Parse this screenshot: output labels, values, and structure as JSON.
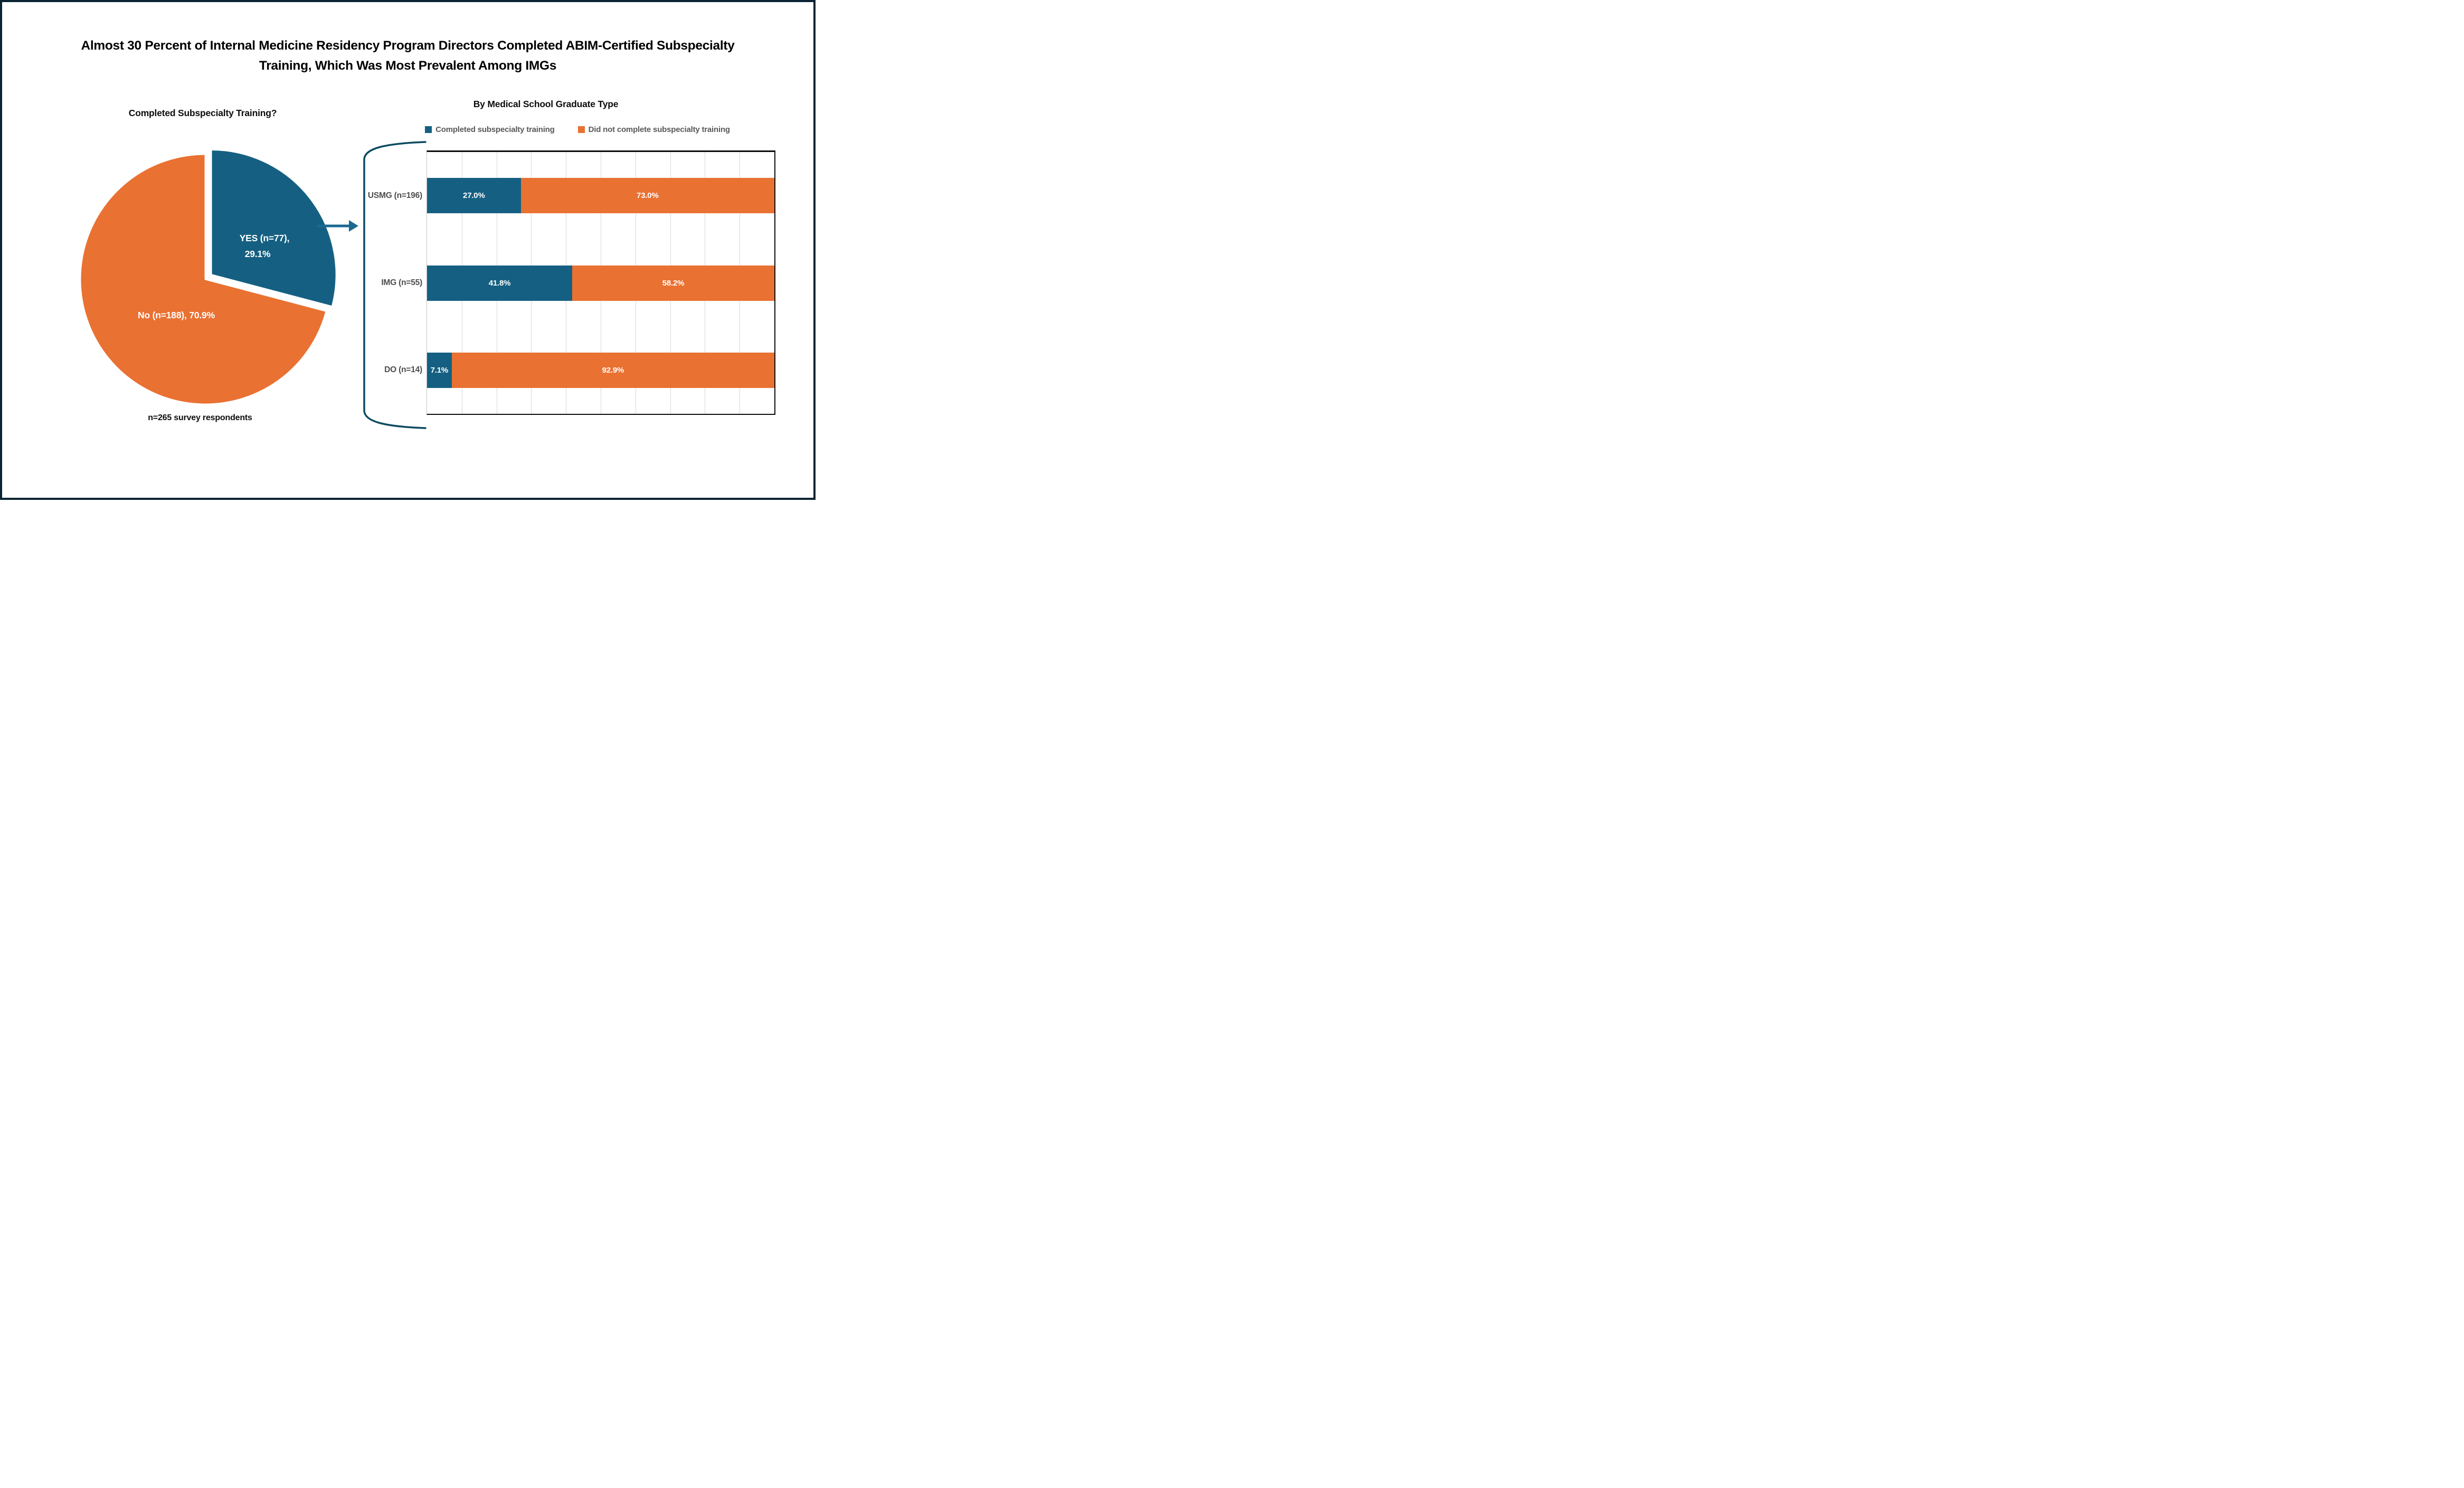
{
  "header": {
    "title_lines": [
      "Almost 30 Percent of Internal Medicine Residency Program Directors Completed ABIM-Certified Subspecialty",
      "Training, Which Was Most Prevalent Among IMGs"
    ]
  },
  "colors": {
    "accent_blue": "#156082",
    "accent_orange": "#E97132",
    "legend_text_gray": "#595959",
    "category_label_gray": "#4D4D4D",
    "gridline_gray": "#D9D9D9",
    "axis_black": "#0D0D0D",
    "frame_navy": "#0B2433",
    "arrow_teal": "#1B6890",
    "bracket_teal": "#0E4A61",
    "slice_label_white": "#FFFFFF"
  },
  "chart_data": [
    {
      "type": "pie",
      "title": "Completed Subspecialty Training?",
      "caption": "n=265 survey respondents",
      "slices": [
        {
          "label": "YES (n=77), 29.1%",
          "label_lines": [
            "YES (n=77),",
            "29.1%"
          ],
          "value": 29.1,
          "color": "#156082",
          "exploded": true
        },
        {
          "label": "No (n=188), 70.9%",
          "label_lines": [
            "No (n=188), 70.9%"
          ],
          "value": 70.9,
          "color": "#E97132",
          "exploded": false
        }
      ]
    },
    {
      "type": "bar",
      "orientation": "horizontal-stacked",
      "title": "By Medical School Graduate Type",
      "categories": [
        "USMG (n=196)",
        "IMG (n=55)",
        "DO (n=14)"
      ],
      "series": [
        {
          "name": "Completed subspecialty training",
          "color": "#156082",
          "values": [
            27.0,
            41.8,
            7.1
          ]
        },
        {
          "name": "Did not complete subspecialty training",
          "color": "#E97132",
          "values": [
            73.0,
            58.2,
            92.9
          ]
        }
      ],
      "value_labels": [
        [
          "27.0%",
          "73.0%"
        ],
        [
          "41.8%",
          "58.2%"
        ],
        [
          "7.1%",
          "92.9%"
        ]
      ],
      "xlim": [
        0,
        100
      ],
      "gridline_step": 10,
      "grid": "vertical-only",
      "legend_position": "top"
    }
  ]
}
